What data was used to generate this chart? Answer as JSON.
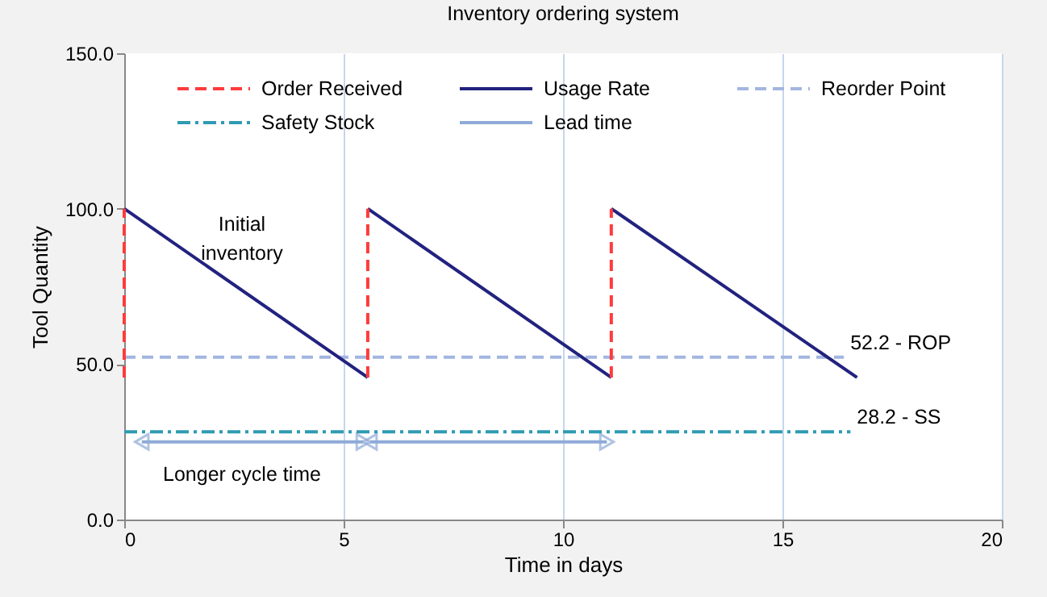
{
  "chart_data": {
    "type": "line",
    "title": "Inventory ordering system",
    "xlabel": "Time in days",
    "ylabel": "Tool Quantity",
    "xlim": [
      0,
      20
    ],
    "xticks": [
      0,
      5,
      10,
      15,
      20
    ],
    "ylim": [
      0,
      150
    ],
    "yticks": [
      {
        "value": 0,
        "label": "0.0"
      },
      {
        "value": 50,
        "label": "50.0"
      },
      {
        "value": 100,
        "label": "100.0"
      },
      {
        "value": 150,
        "label": "150.0"
      }
    ],
    "grid": "x",
    "legend": "top",
    "series": [
      {
        "name": "Order Received",
        "color": "#ff3b3b",
        "line_style": "dashed",
        "x": [
          0,
          0,
          null,
          5.55,
          5.55,
          null,
          11.1,
          11.1
        ],
        "values": [
          45.7,
          100,
          null,
          45.7,
          100,
          null,
          45.7,
          100
        ]
      },
      {
        "name": "Usage Rate",
        "color": "#22227f",
        "line_style": "solid",
        "x": [
          0,
          5.55,
          null,
          5.55,
          11.1,
          null,
          11.1,
          16.7
        ],
        "values": [
          100,
          45.7,
          null,
          100,
          45.7,
          null,
          100,
          45.7
        ]
      },
      {
        "name": "Reorder Point",
        "color": "#a3b5e0",
        "line_style": "dashed",
        "x": [
          0,
          16.4
        ],
        "values": [
          52.2,
          52.2
        ]
      },
      {
        "name": "Safety Stock",
        "color": "#2f9bb3",
        "line_style": "dashdot",
        "x": [
          0,
          16.55
        ],
        "values": [
          28.2,
          28.2
        ]
      },
      {
        "name": "Lead time",
        "color": "#8eaad8",
        "line_style": "solid",
        "marker": "triangle",
        "x": [
          0.4,
          5.45,
          null,
          5.6,
          11.0
        ],
        "values": [
          25,
          25,
          null,
          25,
          25
        ]
      }
    ],
    "annotations": [
      "Initial\ninventory",
      "Longer cycle time",
      {
        "text": "52.2 - ROP",
        "x": 16.4,
        "y": 52.2
      },
      {
        "text": "28.2 - SS",
        "x": 16.55,
        "y": 28.2
      }
    ]
  }
}
